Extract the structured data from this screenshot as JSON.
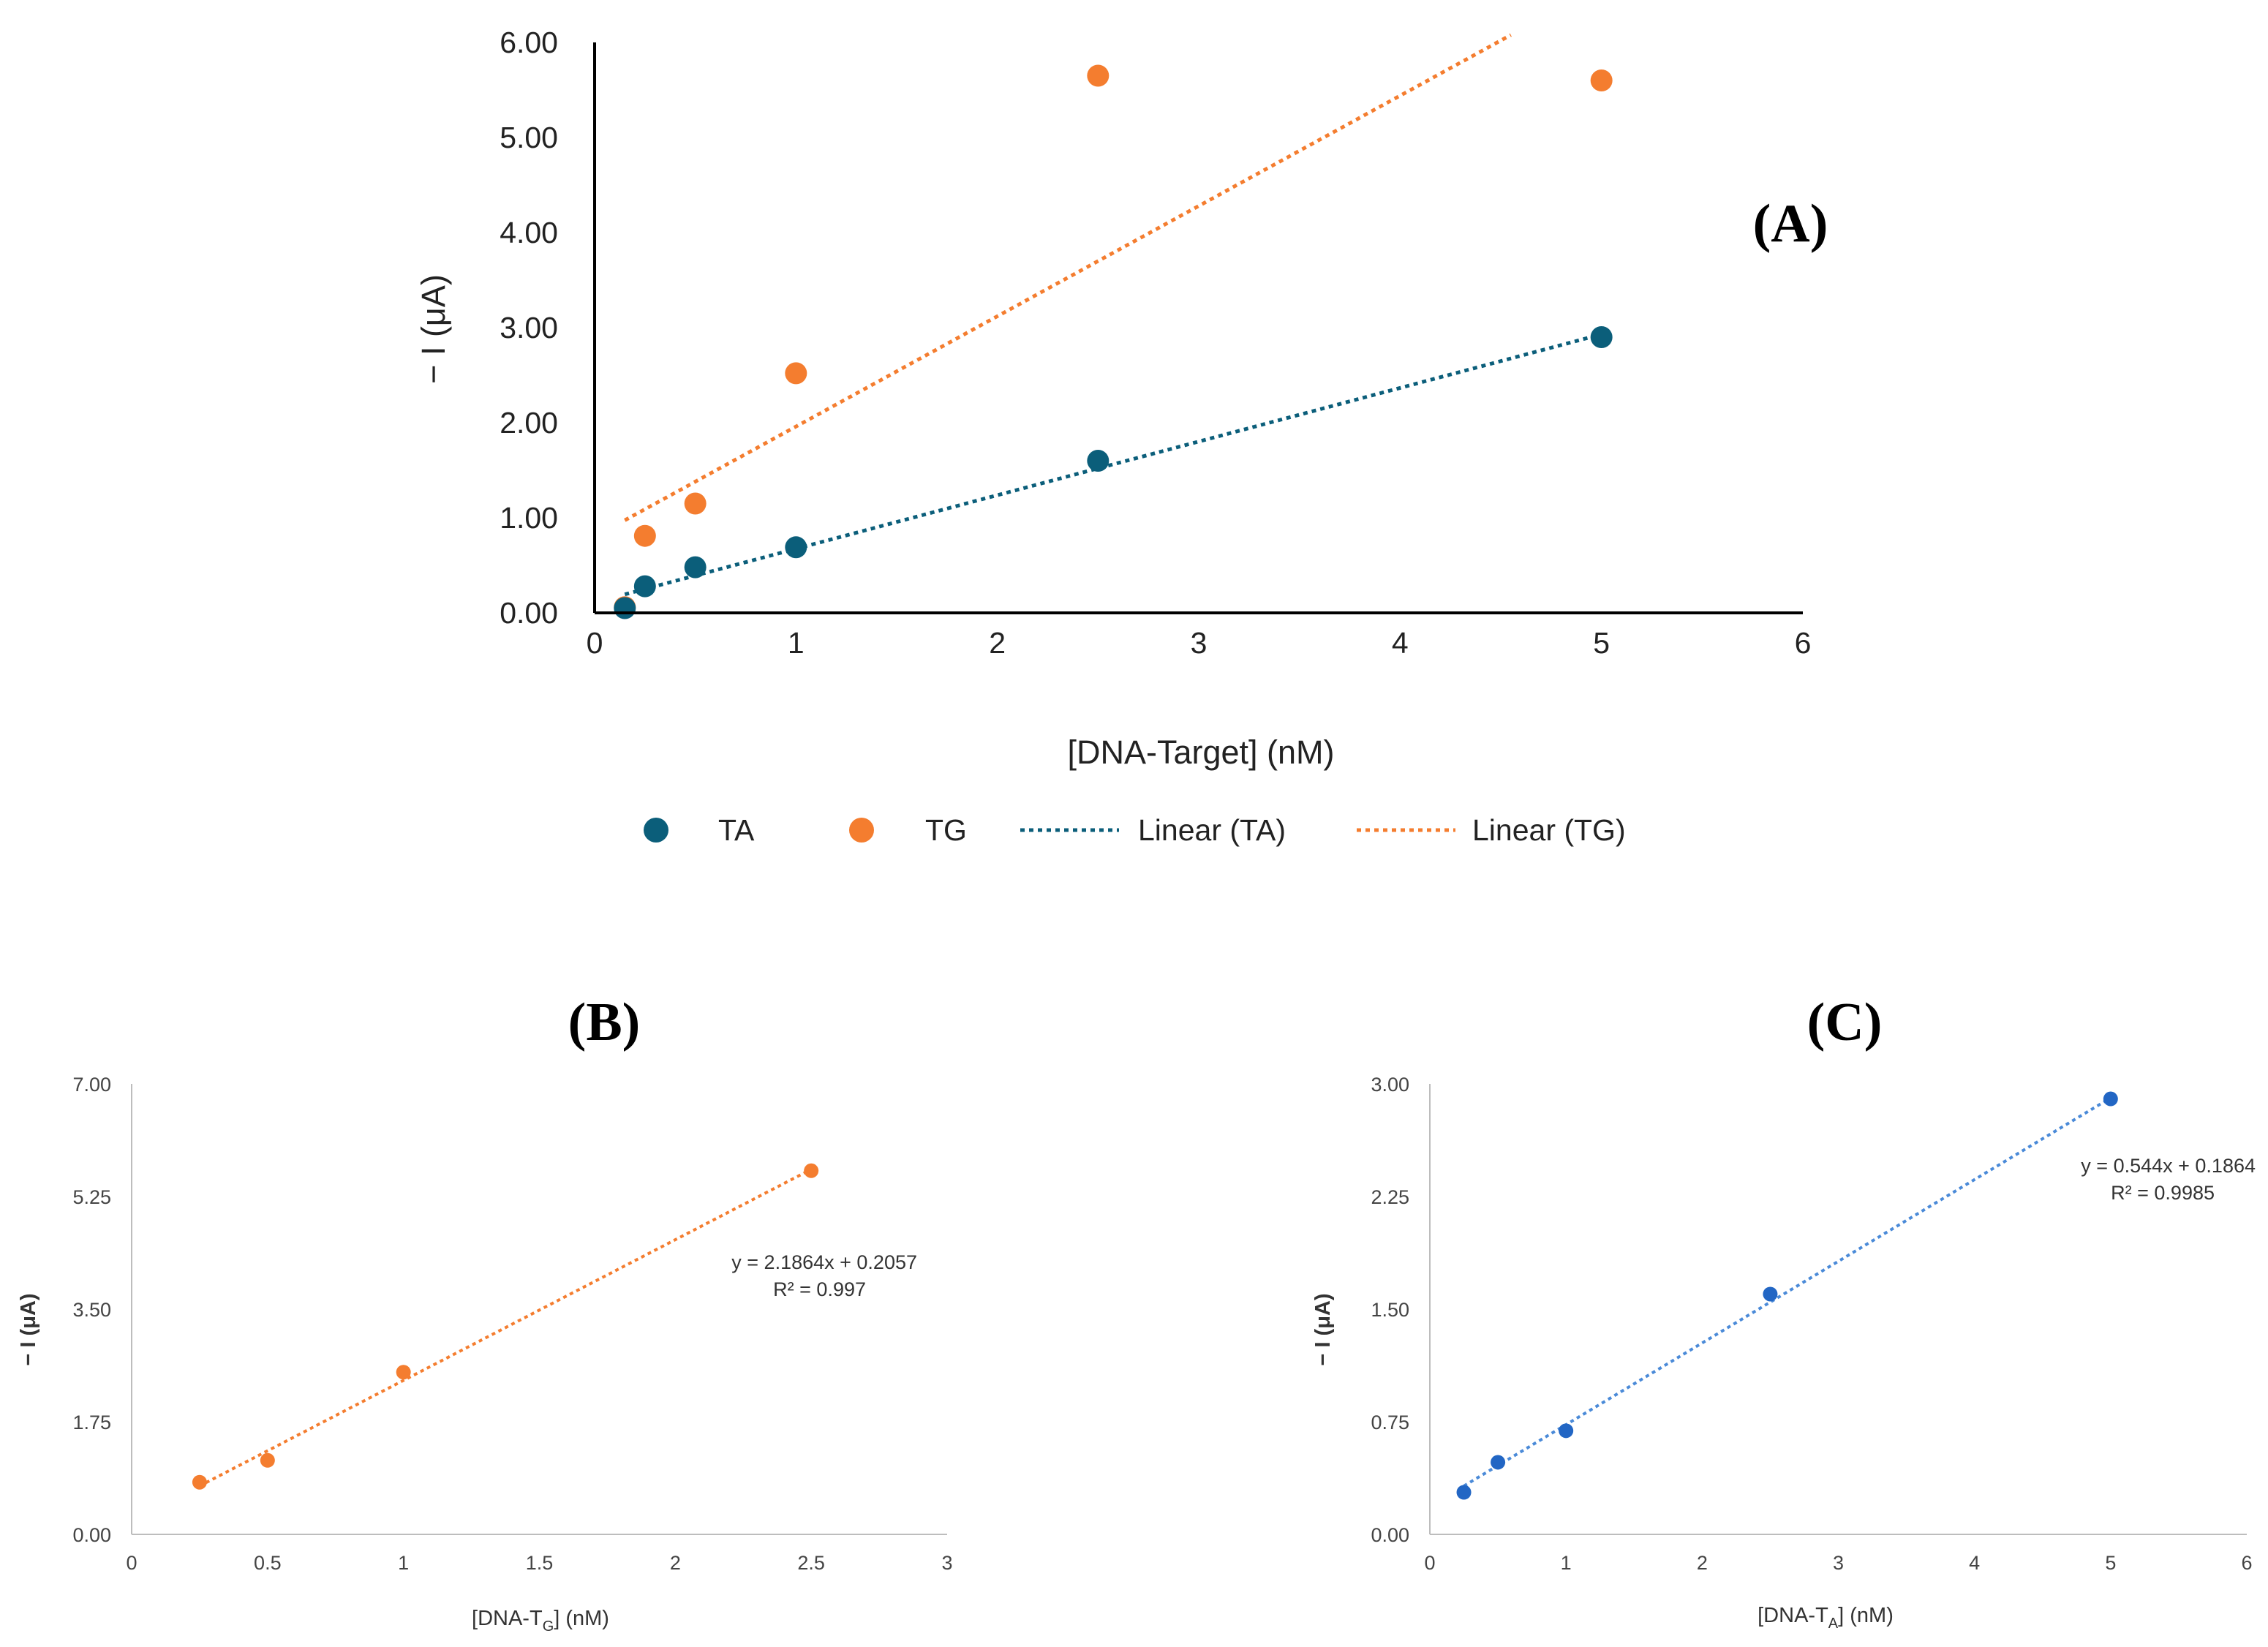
{
  "chart_data": [
    {
      "type": "scatter",
      "panel_label": "(A)",
      "title": "",
      "xlabel": "[DNA-Target] (nM)",
      "ylabel": "− I (μA)",
      "xlim": [
        0,
        6
      ],
      "ylim": [
        0,
        6
      ],
      "x_ticks": [
        "0",
        "1",
        "2",
        "3",
        "4",
        "5",
        "6"
      ],
      "y_ticks": [
        "0.00",
        "1.00",
        "2.00",
        "3.00",
        "4.00",
        "5.00",
        "6.00"
      ],
      "legend_position": "bottom",
      "series": [
        {
          "name": "TA",
          "color": "#0b5e7a",
          "x": [
            0.15,
            0.25,
            0.5,
            1.0,
            2.5,
            5.0
          ],
          "y": [
            0.05,
            0.28,
            0.48,
            0.69,
            1.6,
            2.9
          ]
        },
        {
          "name": "TG",
          "color": "#f47d2f",
          "x": [
            0.15,
            0.25,
            0.5,
            1.0,
            2.5,
            5.0
          ],
          "y": [
            0.06,
            0.81,
            1.15,
            2.52,
            5.65,
            5.6
          ]
        }
      ],
      "trendlines": [
        {
          "name": "Linear (TA)",
          "color": "#0b5e7a",
          "x_range": [
            0.15,
            5.0
          ],
          "slope": 0.564,
          "intercept": 0.11
        },
        {
          "name": "Linear (TG)",
          "color": "#f47d2f",
          "x_range": [
            0.15,
            4.55
          ],
          "slope": 1.16,
          "intercept": 0.8
        }
      ],
      "legend": [
        "TA",
        "TG",
        "Linear (TA)",
        "Linear (TG)"
      ]
    },
    {
      "type": "scatter",
      "panel_label": "(B)",
      "xlabel_main": "[DNA-T",
      "xlabel_sub": "G",
      "xlabel_tail": "] (nM)",
      "ylabel": "− I (μA)",
      "xlim": [
        0,
        3
      ],
      "ylim": [
        0,
        7
      ],
      "x_ticks": [
        "0",
        "0.5",
        "1",
        "1.5",
        "2",
        "2.5",
        "3"
      ],
      "y_ticks": [
        "0.00",
        "1.75",
        "3.50",
        "5.25",
        "7.00"
      ],
      "series": [
        {
          "name": "TG",
          "color": "#f47d2f",
          "x": [
            0.25,
            0.5,
            1.0,
            2.5
          ],
          "y": [
            0.81,
            1.15,
            2.52,
            5.65
          ]
        }
      ],
      "trendline": {
        "color": "#f47d2f",
        "x_range": [
          0.25,
          2.5
        ],
        "slope": 2.1864,
        "intercept": 0.2057
      },
      "equation": "y = 2.1864x + 0.2057",
      "r_squared": "R² = 0.997"
    },
    {
      "type": "scatter",
      "panel_label": "(C)",
      "xlabel_main": "[DNA-T",
      "xlabel_sub": "A",
      "xlabel_tail": "] (nM)",
      "ylabel": "− I (μA)",
      "xlim": [
        0,
        6
      ],
      "ylim": [
        0,
        3
      ],
      "x_ticks": [
        "0",
        "1",
        "2",
        "3",
        "4",
        "5",
        "6"
      ],
      "y_ticks": [
        "0.00",
        "0.75",
        "1.50",
        "2.25",
        "3.00"
      ],
      "series": [
        {
          "name": "TA",
          "color": "#2266c4",
          "x": [
            0.25,
            0.5,
            1.0,
            2.5,
            5.0
          ],
          "y": [
            0.28,
            0.48,
            0.69,
            1.6,
            2.9
          ]
        }
      ],
      "trendline": {
        "color": "#4a8ad8",
        "x_range": [
          0.25,
          5.0
        ],
        "slope": 0.544,
        "intercept": 0.1864
      },
      "equation": "y = 0.544x + 0.1864",
      "r_squared": "R² = 0.9985"
    }
  ]
}
